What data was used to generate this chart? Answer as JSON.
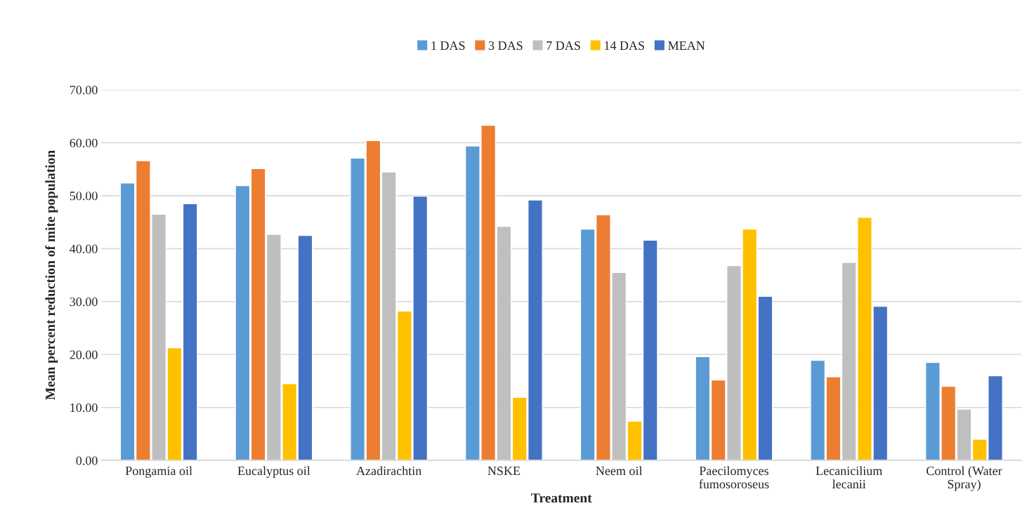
{
  "chart_data": {
    "type": "bar",
    "categories": [
      "Pongamia oil",
      "Eucalyptus oil",
      "Azadirachtin",
      "NSKE",
      "Neem oil",
      "Paecilomyces\nfumosoroseus",
      "Lecanicilium\nlecanii",
      "Control (Water\nSpray)"
    ],
    "series": [
      {
        "name": "1 DAS",
        "color": "#5b9bd5",
        "values": [
          52.4,
          51.9,
          57.1,
          59.4,
          43.7,
          19.6,
          18.9,
          18.5
        ]
      },
      {
        "name": "3 DAS",
        "color": "#ed7d31",
        "values": [
          56.6,
          55.1,
          60.4,
          63.3,
          46.4,
          15.2,
          15.8,
          14.0
        ]
      },
      {
        "name": "7 DAS",
        "color": "#bfbfbf",
        "values": [
          46.5,
          42.7,
          54.5,
          44.2,
          35.5,
          36.8,
          37.4,
          9.7
        ]
      },
      {
        "name": "14 DAS",
        "color": "#ffc000",
        "values": [
          21.3,
          14.5,
          28.2,
          11.9,
          7.4,
          43.7,
          45.9,
          4.0
        ]
      },
      {
        "name": "MEAN",
        "color": "#4472c4",
        "values": [
          48.5,
          42.5,
          49.9,
          49.2,
          41.6,
          31.0,
          29.1,
          16.0
        ]
      }
    ],
    "xlabel": "Treatment",
    "ylabel": "Mean percent reduction of mite population",
    "ylim": [
      0,
      70
    ],
    "yticks": [
      {
        "value": 0,
        "label": "0.00"
      },
      {
        "value": 10,
        "label": "10.00"
      },
      {
        "value": 20,
        "label": "20.00"
      },
      {
        "value": 30,
        "label": "30.00"
      },
      {
        "value": 40,
        "label": "40.00"
      },
      {
        "value": 50,
        "label": "50.00"
      },
      {
        "value": 60,
        "label": "60.00"
      },
      {
        "value": 70,
        "label": "70.00"
      }
    ],
    "grid": "y",
    "legend": "top"
  }
}
